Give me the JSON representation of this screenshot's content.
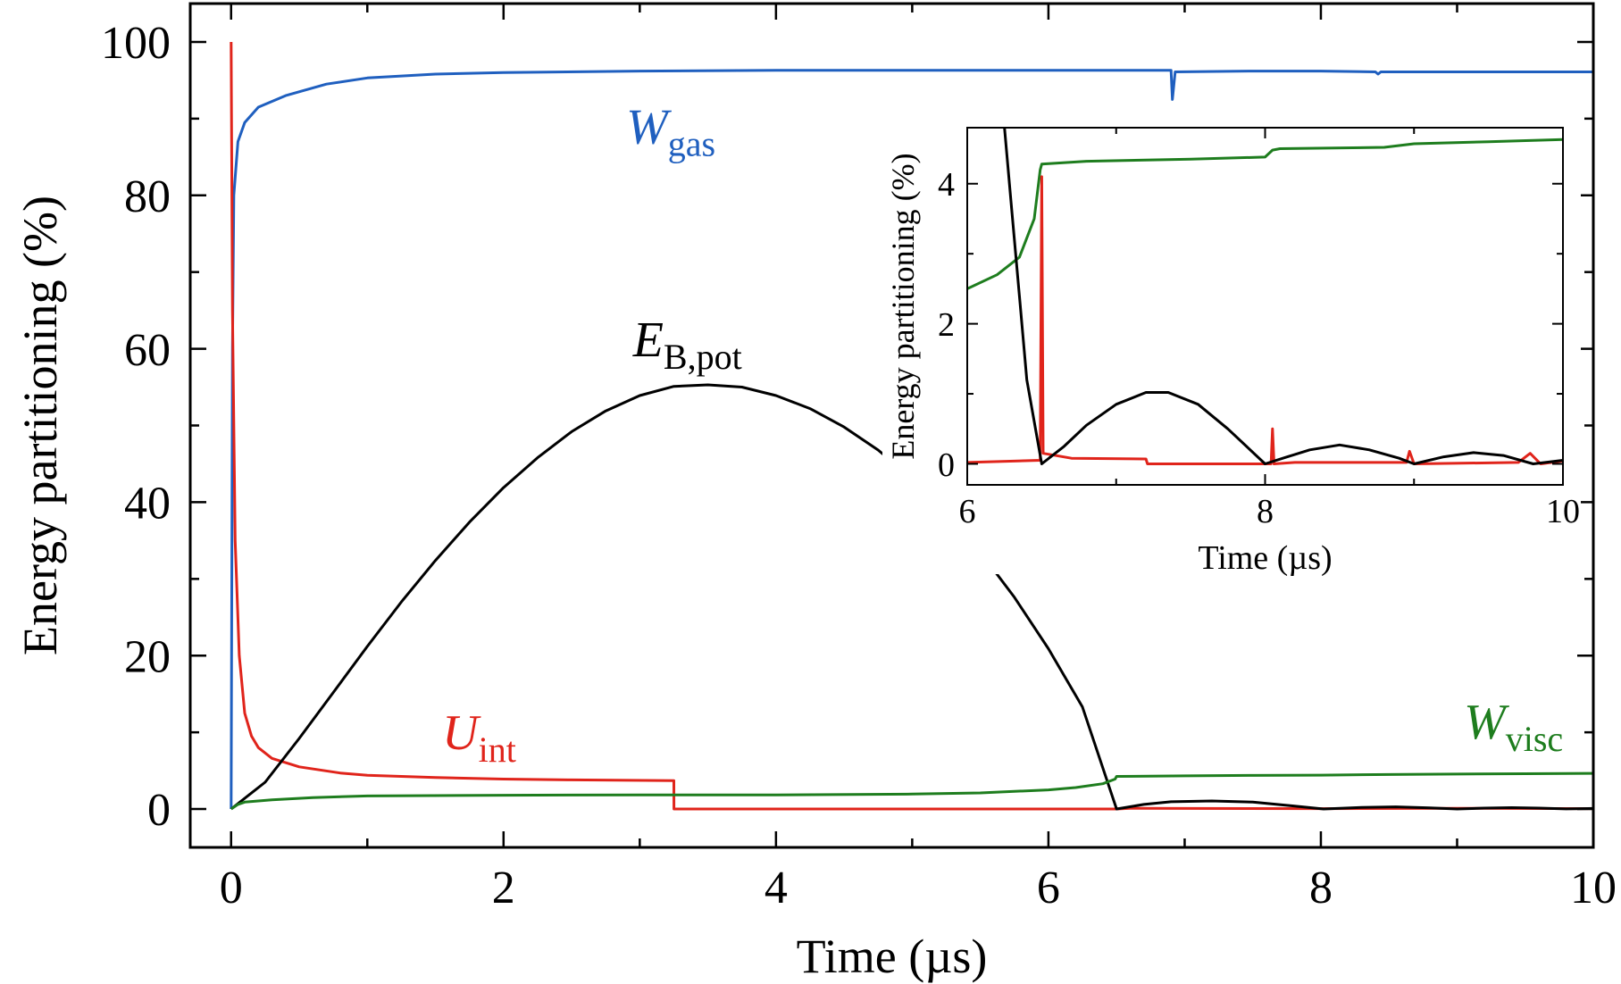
{
  "chart_data": [
    {
      "type": "line",
      "xlabel": "Time (µs)",
      "ylabel": "Energy partitioning (%)",
      "xlim": [
        -0.3,
        10
      ],
      "ylim": [
        -5,
        105
      ],
      "xticks": [
        0,
        2,
        4,
        6,
        8,
        10
      ],
      "yticks": [
        0,
        20,
        40,
        60,
        80,
        100
      ],
      "tick_labels_x": [
        "0",
        "2",
        "4",
        "6",
        "8",
        "10"
      ],
      "tick_labels_y": [
        "0",
        "20",
        "40",
        "60",
        "80",
        "100"
      ],
      "grid": false,
      "legend": "none",
      "series": [
        {
          "name": "W_gas",
          "label_main": "W",
          "label_sub": "gas",
          "color": "#1f5fbf",
          "points": [
            [
              0,
              0
            ],
            [
              0.01,
              60
            ],
            [
              0.02,
              80
            ],
            [
              0.05,
              87
            ],
            [
              0.1,
              89.5
            ],
            [
              0.2,
              91.5
            ],
            [
              0.4,
              93
            ],
            [
              0.7,
              94.5
            ],
            [
              1,
              95.3
            ],
            [
              1.5,
              95.8
            ],
            [
              2,
              96
            ],
            [
              3,
              96.2
            ],
            [
              4,
              96.3
            ],
            [
              5,
              96.3
            ],
            [
              6,
              96.3
            ],
            [
              6.9,
              96.3
            ],
            [
              6.91,
              92.5
            ],
            [
              6.93,
              96.1
            ],
            [
              7.5,
              96.2
            ],
            [
              8,
              96.2
            ],
            [
              8.4,
              96.1
            ],
            [
              8.42,
              95.8
            ],
            [
              8.44,
              96.1
            ],
            [
              9,
              96.1
            ],
            [
              10,
              96.1
            ]
          ]
        },
        {
          "name": "U_int",
          "label_main": "U",
          "label_sub": "int",
          "color": "#e0241b",
          "points": [
            [
              0,
              100
            ],
            [
              0.01,
              65
            ],
            [
              0.03,
              35
            ],
            [
              0.06,
              20
            ],
            [
              0.1,
              12.5
            ],
            [
              0.15,
              9.5
            ],
            [
              0.2,
              8
            ],
            [
              0.3,
              6.6
            ],
            [
              0.5,
              5.5
            ],
            [
              0.8,
              4.7
            ],
            [
              1,
              4.4
            ],
            [
              1.5,
              4.1
            ],
            [
              2,
              3.9
            ],
            [
              2.5,
              3.8
            ],
            [
              3.25,
              3.7
            ],
            [
              3.251,
              0
            ],
            [
              6.5,
              0
            ],
            [
              6.6,
              0.1
            ],
            [
              8,
              0.05
            ],
            [
              9,
              0.1
            ],
            [
              10,
              0.05
            ]
          ]
        },
        {
          "name": "E_B,pot",
          "label_main": "E",
          "label_sub": "B,pot",
          "color": "#000000",
          "points": [
            [
              0,
              0
            ],
            [
              0.25,
              3.5
            ],
            [
              0.5,
              9.2
            ],
            [
              0.75,
              15.2
            ],
            [
              1,
              21.2
            ],
            [
              1.25,
              27.0
            ],
            [
              1.5,
              32.4
            ],
            [
              1.75,
              37.4
            ],
            [
              2,
              41.9
            ],
            [
              2.25,
              45.8
            ],
            [
              2.5,
              49.2
            ],
            [
              2.75,
              51.9
            ],
            [
              3,
              53.9
            ],
            [
              3.25,
              55.1
            ],
            [
              3.5,
              55.3
            ],
            [
              3.75,
              55.0
            ],
            [
              4,
              53.9
            ],
            [
              4.25,
              52.2
            ],
            [
              4.5,
              49.8
            ],
            [
              4.75,
              46.8
            ],
            [
              5,
              43.1
            ],
            [
              5.25,
              38.7
            ],
            [
              5.5,
              33.5
            ],
            [
              5.75,
              27.6
            ],
            [
              6,
              20.9
            ],
            [
              6.25,
              13.3
            ],
            [
              6.5,
              0
            ],
            [
              6.7,
              0.6
            ],
            [
              6.9,
              0.95
            ],
            [
              7.2,
              1.05
            ],
            [
              7.5,
              0.9
            ],
            [
              7.8,
              0.4
            ],
            [
              8.02,
              0
            ],
            [
              8.3,
              0.2
            ],
            [
              8.55,
              0.28
            ],
            [
              8.8,
              0.15
            ],
            [
              9.0,
              0
            ],
            [
              9.2,
              0.12
            ],
            [
              9.4,
              0.18
            ],
            [
              9.6,
              0.12
            ],
            [
              9.8,
              0.02
            ],
            [
              10,
              0.08
            ]
          ]
        },
        {
          "name": "W_visc",
          "label_main": "W",
          "label_sub": "visc",
          "color": "#1e7d1e",
          "points": [
            [
              0,
              0
            ],
            [
              0.05,
              0.6
            ],
            [
              0.1,
              0.9
            ],
            [
              0.3,
              1.2
            ],
            [
              0.6,
              1.5
            ],
            [
              1,
              1.7
            ],
            [
              2,
              1.8
            ],
            [
              3,
              1.85
            ],
            [
              4,
              1.85
            ],
            [
              5,
              1.95
            ],
            [
              5.5,
              2.1
            ],
            [
              6,
              2.5
            ],
            [
              6.2,
              2.8
            ],
            [
              6.4,
              3.3
            ],
            [
              6.49,
              3.9
            ],
            [
              6.5,
              4.25
            ],
            [
              7,
              4.32
            ],
            [
              7.5,
              4.38
            ],
            [
              8,
              4.42
            ],
            [
              8.5,
              4.5
            ],
            [
              9,
              4.56
            ],
            [
              9.5,
              4.6
            ],
            [
              10,
              4.65
            ]
          ]
        }
      ]
    },
    {
      "type": "line",
      "xlabel": "Time (µs)",
      "ylabel": "Energy partitioning (%)",
      "xlim": [
        6,
        10
      ],
      "ylim": [
        -0.3,
        4.8
      ],
      "xticks": [
        6,
        8,
        10
      ],
      "yticks": [
        0,
        2,
        4
      ],
      "tick_labels_x": [
        "6",
        "8",
        "10"
      ],
      "tick_labels_y": [
        "0",
        "2",
        "4"
      ],
      "grid": false,
      "legend": "none",
      "series": [
        {
          "name": "W_visc",
          "color": "#1e7d1e",
          "points": [
            [
              6,
              2.5
            ],
            [
              6.2,
              2.7
            ],
            [
              6.35,
              2.95
            ],
            [
              6.45,
              3.5
            ],
            [
              6.49,
              4.2
            ],
            [
              6.5,
              4.28
            ],
            [
              6.8,
              4.32
            ],
            [
              7.5,
              4.35
            ],
            [
              8,
              4.38
            ],
            [
              8.05,
              4.48
            ],
            [
              8.1,
              4.5
            ],
            [
              8.8,
              4.52
            ],
            [
              9.0,
              4.57
            ],
            [
              9.5,
              4.6
            ],
            [
              10,
              4.63
            ]
          ]
        },
        {
          "name": "U_int",
          "color": "#e0241b",
          "points": [
            [
              6,
              0.02
            ],
            [
              6.49,
              0.05
            ],
            [
              6.5,
              4.1
            ],
            [
              6.51,
              0.15
            ],
            [
              6.7,
              0.08
            ],
            [
              7.2,
              0.07
            ],
            [
              7.21,
              0
            ],
            [
              8.04,
              0
            ],
            [
              8.05,
              0.5
            ],
            [
              8.06,
              0
            ],
            [
              8.2,
              0.02
            ],
            [
              8.95,
              0.02
            ],
            [
              8.97,
              0.18
            ],
            [
              9.0,
              0
            ],
            [
              9.7,
              0.02
            ],
            [
              9.78,
              0.15
            ],
            [
              9.85,
              0
            ],
            [
              10,
              0.04
            ]
          ]
        },
        {
          "name": "E_B,pot",
          "color": "#000000",
          "points": [
            [
              6.25,
              4.8
            ],
            [
              6.3,
              3.6
            ],
            [
              6.35,
              2.4
            ],
            [
              6.4,
              1.2
            ],
            [
              6.5,
              0
            ],
            [
              6.65,
              0.25
            ],
            [
              6.8,
              0.55
            ],
            [
              7.0,
              0.85
            ],
            [
              7.2,
              1.02
            ],
            [
              7.35,
              1.02
            ],
            [
              7.55,
              0.85
            ],
            [
              7.75,
              0.5
            ],
            [
              8.0,
              0
            ],
            [
              8.15,
              0.1
            ],
            [
              8.3,
              0.2
            ],
            [
              8.5,
              0.27
            ],
            [
              8.7,
              0.2
            ],
            [
              8.9,
              0.08
            ],
            [
              9.0,
              0
            ],
            [
              9.2,
              0.1
            ],
            [
              9.4,
              0.16
            ],
            [
              9.6,
              0.12
            ],
            [
              9.8,
              0.0
            ],
            [
              10,
              0.05
            ]
          ]
        }
      ]
    }
  ]
}
